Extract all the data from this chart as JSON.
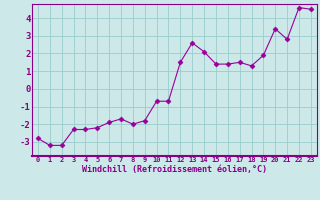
{
  "x": [
    0,
    1,
    2,
    3,
    4,
    5,
    6,
    7,
    8,
    9,
    10,
    11,
    12,
    13,
    14,
    15,
    16,
    17,
    18,
    19,
    20,
    21,
    22,
    23
  ],
  "y": [
    -2.8,
    -3.2,
    -3.2,
    -2.3,
    -2.3,
    -2.2,
    -1.9,
    -1.7,
    -2.0,
    -1.8,
    -0.7,
    -0.7,
    1.5,
    2.6,
    2.1,
    1.4,
    1.4,
    1.5,
    1.3,
    1.9,
    3.4,
    2.8,
    4.6,
    4.5
  ],
  "line_color": "#990099",
  "marker": "D",
  "marker_size": 2.5,
  "bg_color": "#cce8e8",
  "grid_color": "#99cccc",
  "xlabel": "Windchill (Refroidissement éolien,°C)",
  "xlabel_color": "#880088",
  "tick_color": "#880088",
  "ylim": [
    -3.8,
    4.8
  ],
  "xlim": [
    -0.5,
    23.5
  ],
  "yticks": [
    -3,
    -2,
    -1,
    0,
    1,
    2,
    3,
    4
  ],
  "xticks": [
    0,
    1,
    2,
    3,
    4,
    5,
    6,
    7,
    8,
    9,
    10,
    11,
    12,
    13,
    14,
    15,
    16,
    17,
    18,
    19,
    20,
    21,
    22,
    23
  ],
  "xtick_labels": [
    "0",
    "1",
    "2",
    "3",
    "4",
    "5",
    "6",
    "7",
    "8",
    "9",
    "10",
    "11",
    "12",
    "13",
    "14",
    "15",
    "16",
    "17",
    "18",
    "19",
    "20",
    "21",
    "22",
    "23"
  ],
  "spine_color": "#880088",
  "bottom_spine_color": "#880088"
}
